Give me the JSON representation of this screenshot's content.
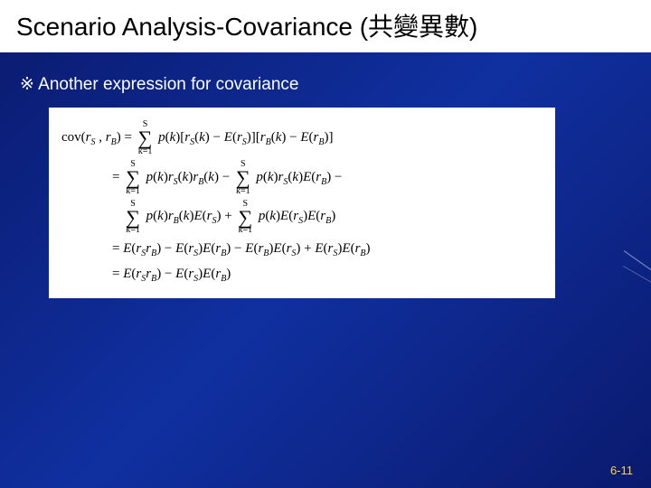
{
  "slide": {
    "title": "Scenario Analysis-Covariance (共變異數)",
    "subtitle": "※ Another expression for covariance",
    "page_number": "6-11",
    "background_gradient": [
      "#0a1a6e",
      "#1030a0",
      "#0a1a6e"
    ],
    "title_bg": "#ffffff",
    "title_color": "#000000",
    "subtitle_color": "#ffffff",
    "footer_color": "#ffd24a"
  },
  "formula": {
    "sum_upper": "S",
    "sum_lower": "k=1",
    "lines": {
      "l1_lhs": "cov(rS , rB) = ",
      "l1_rhs": " p(k)[rS(k) − E(rS)][rB(k) − E(rB)]",
      "l2_lead": "= ",
      "l2_a": " p(k)rS(k)rB(k) − ",
      "l2_b": " p(k)rS(k)E(rB) −",
      "l3_a": " p(k)rB(k)E(rS) + ",
      "l3_b": " p(k)E(rS)E(rB)",
      "l4": "= E(rSrB) − E(rS)E(rB) − E(rB)E(rS) + E(rS)E(rB)",
      "l5": "= E(rSrB) − E(rS)E(rB)"
    },
    "box_bg": "#ffffff",
    "font": "Times New Roman",
    "fontsize_pt": 12
  }
}
